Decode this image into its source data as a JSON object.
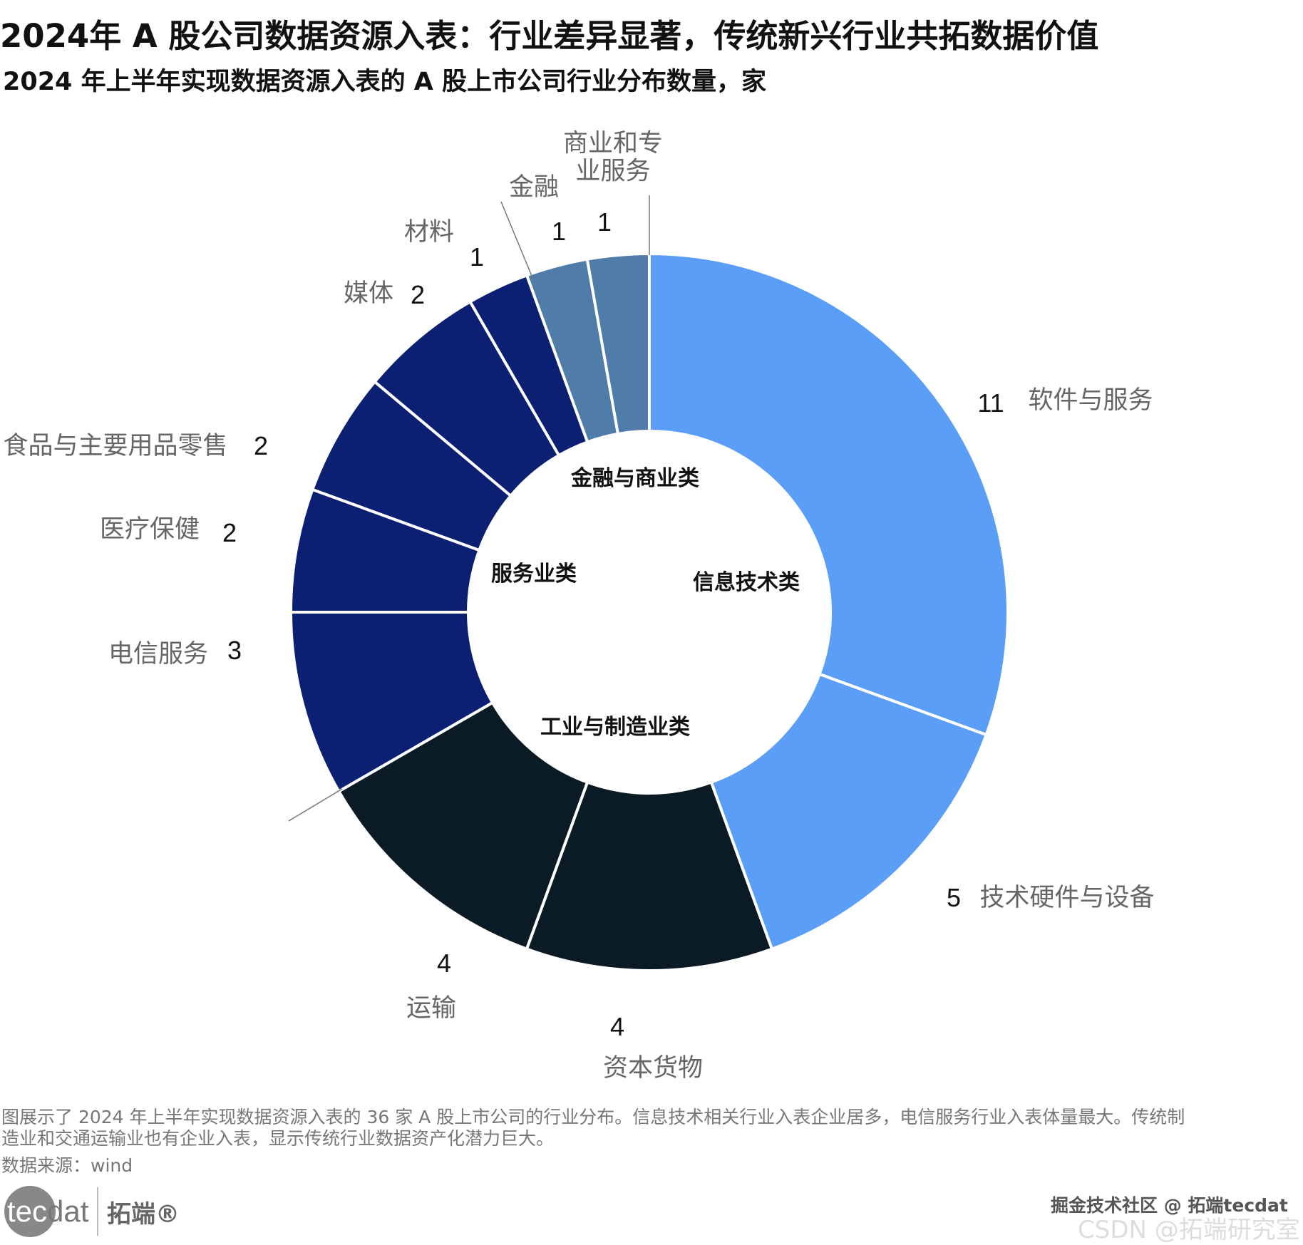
{
  "header": {
    "title": "2024年 A 股公司数据资源入表：行业差异显著，传统新兴行业共拓数据价值",
    "subtitle": "2024 年上半年实现数据资源入表的 A 股上市公司行业分布数量，家"
  },
  "chart_data": {
    "type": "pie",
    "subtype": "donut",
    "title": "2024 年上半年实现数据资源入表的 A 股上市公司行业分布数量，家",
    "unit": "家",
    "categories": [
      "软件与服务",
      "技术硬件与设备",
      "资本货物",
      "运输",
      "电信服务",
      "医疗保健",
      "食品与主要用品零售",
      "媒体",
      "材料",
      "金融",
      "商业和专业服务"
    ],
    "values": [
      11,
      5,
      4,
      4,
      3,
      2,
      2,
      2,
      1,
      1,
      1
    ],
    "groups": [
      "信息技术类",
      "信息技术类",
      "工业与制造业类",
      "工业与制造业类",
      "服务业类",
      "服务业类",
      "服务业类",
      "服务业类",
      "服务业类",
      "金融与商业类",
      "金融与商业类"
    ],
    "group_labels": [
      "信息技术类",
      "工业与制造业类",
      "服务业类",
      "金融与商业类"
    ],
    "group_colors": {
      "信息技术类": "#5b9ef8",
      "工业与制造业类": "#0a1b26",
      "服务业类": "#0b2072",
      "金融与商业类": "#4f7ca8"
    },
    "total": 36,
    "start": "top, clockwise"
  },
  "footer": {
    "description_line1": "图展示了 2024 年上半年实现数据资源入表的 36 家 A 股上市公司的行业分布。信息技术相关行业入表企业居多，电信服务行业入表体量最大。传统制",
    "description_line2": "造业和交通运输业也有企业入表，显示传统行业数据资产化潜力巨大。",
    "source": "数据来源：wind",
    "logo_en_a": "tec",
    "logo_en_b": "dat",
    "logo_cn": "拓端®",
    "watermark1": "掘金技术社区 @ 拓端tecdat",
    "watermark2": "CSDN @拓端研究室"
  }
}
